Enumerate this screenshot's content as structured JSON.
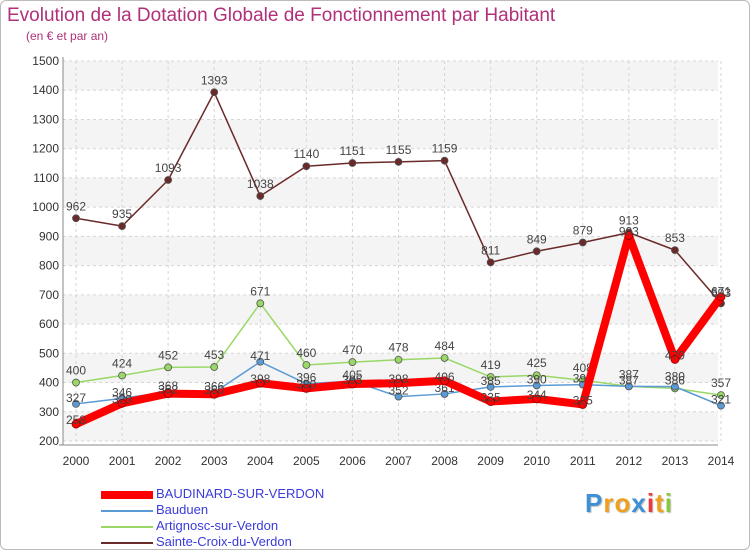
{
  "chart_data": {
    "type": "line",
    "title": "Evolution de la Dotation Globale de Fonctionnement par Habitant",
    "subtitle": "(en € et par an)",
    "xlabel": "",
    "ylabel": "",
    "categories": [
      "2000",
      "2001",
      "2002",
      "2003",
      "2004",
      "2005",
      "2006",
      "2007",
      "2008",
      "2009",
      "2010",
      "2011",
      "2012",
      "2013",
      "2014"
    ],
    "ylim": [
      200,
      1500
    ],
    "yticks": [
      200,
      300,
      400,
      500,
      600,
      700,
      800,
      900,
      1000,
      1100,
      1200,
      1300,
      1400,
      1500
    ],
    "legend_position": "bottom-left",
    "series": [
      {
        "name": "BAUDINARD-SUR-VERDON",
        "color": "#ff0000",
        "values": [
          258,
          329,
          362,
          360,
          398,
          380,
          395,
          398,
          406,
          335,
          344,
          325,
          903,
          479,
          693
        ]
      },
      {
        "name": "Bauduen",
        "color": "#5b9bd5",
        "values": [
          327,
          346,
          368,
          366,
          471,
          396,
          405,
          352,
          361,
          385,
          390,
          393,
          387,
          386,
          321
        ]
      },
      {
        "name": "Artignosc-sur-Verdon",
        "color": "#99d866",
        "values": [
          400,
          424,
          452,
          453,
          671,
          460,
          470,
          478,
          484,
          419,
          425,
          408,
          387,
          380,
          357
        ]
      },
      {
        "name": "Sainte-Croix-du-Verdon",
        "color": "#6b2a2a",
        "values": [
          962,
          935,
          1093,
          1393,
          1038,
          1140,
          1151,
          1155,
          1159,
          811,
          849,
          879,
          913,
          853,
          671
        ]
      }
    ]
  },
  "legend": {
    "items": [
      {
        "label": "BAUDINARD-SUR-VERDON",
        "color": "#ff0000"
      },
      {
        "label": "Bauduen",
        "color": "#5b9bd5"
      },
      {
        "label": "Artignosc-sur-Verdon",
        "color": "#99d866"
      },
      {
        "label": "Sainte-Croix-du-Verdon",
        "color": "#6b2a2a"
      }
    ]
  },
  "logo": {
    "letters": [
      "P",
      "r",
      "o",
      "x",
      "i",
      "t",
      "i"
    ]
  }
}
